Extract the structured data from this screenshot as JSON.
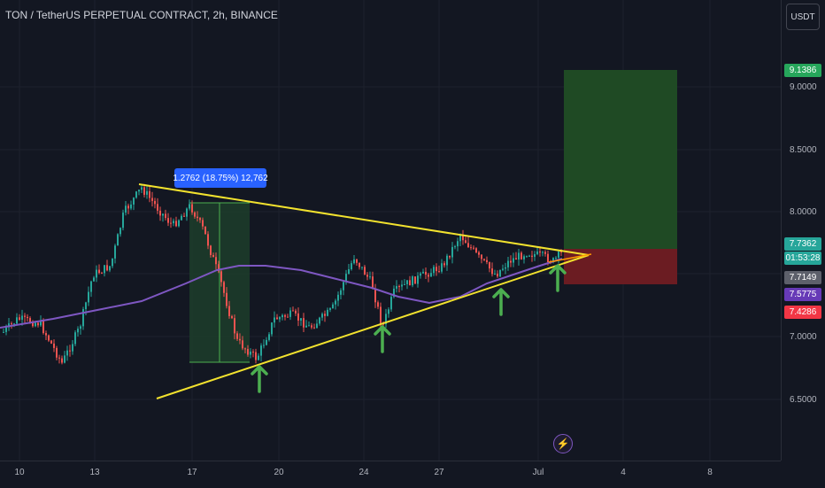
{
  "header": {
    "title": "TON / TetherUS PERPETUAL CONTRACT, 2h, BINANCE",
    "currency": "USDT"
  },
  "price_axis": {
    "ticks": [
      "9.0000",
      "8.5000",
      "8.0000",
      "7.0000",
      "6.5000"
    ]
  },
  "time_axis": {
    "ticks": [
      "10",
      "13",
      "17",
      "20",
      "24",
      "27",
      "Jul",
      "4",
      "8"
    ]
  },
  "badges": {
    "target": "9.1386",
    "last_price": "7.7362",
    "countdown": "01:53:28",
    "entry": "7.7149",
    "ma": "7.5775",
    "stop": "7.4286"
  },
  "measure": {
    "label": "1.2762 (18.75%) 12,762"
  },
  "colors": {
    "background": "#131722",
    "up_candle": "#26a69a",
    "down_candle": "#ef5350",
    "ma_line": "#7e57c2",
    "trendline": "#f2e22e",
    "arrow": "#4caf50",
    "profit_zone": "#1f4a24",
    "loss_zone": "#6b1c22",
    "measure_zone": "#1d3d2a"
  },
  "icons": {
    "arrow": "up-arrow-icon",
    "alert": "lightning-icon"
  }
}
